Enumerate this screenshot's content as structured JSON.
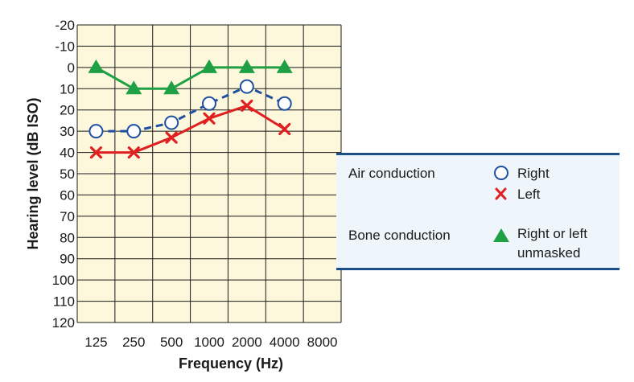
{
  "chart_data": {
    "type": "line",
    "xlabel": "Frequency (Hz)",
    "ylabel": "Hearing level (dB ISO)",
    "categories": [
      "125",
      "250",
      "500",
      "1000",
      "2000",
      "4000",
      "8000"
    ],
    "yticks": [
      "-20",
      "-10",
      "0",
      "10",
      "20",
      "30",
      "40",
      "50",
      "60",
      "70",
      "80",
      "90",
      "100",
      "110",
      "120"
    ],
    "ylim": [
      -20,
      120
    ],
    "y_inverted": true,
    "grid": true,
    "series": [
      {
        "name": "Right",
        "group": "Air conduction",
        "marker": "circle",
        "color": "#1f4fa0",
        "dashed": true,
        "values": [
          30,
          30,
          26,
          17,
          9,
          17,
          null
        ]
      },
      {
        "name": "Left",
        "group": "Air conduction",
        "marker": "x",
        "color": "#e02020",
        "dashed": false,
        "values": [
          40,
          40,
          33,
          24,
          18,
          29,
          null
        ]
      },
      {
        "name": "Right or left unmasked",
        "group": "Bone conduction",
        "marker": "triangle",
        "color": "#1fa045",
        "dashed": false,
        "values": [
          0,
          10,
          10,
          0,
          0,
          0,
          null
        ]
      }
    ],
    "legend": {
      "placement": "right",
      "air_label": "Air conduction",
      "bone_label": "Bone conduction",
      "right_label": "Right",
      "left_label": "Left",
      "bone_line1": "Right or left",
      "bone_line2": "unmasked"
    }
  }
}
